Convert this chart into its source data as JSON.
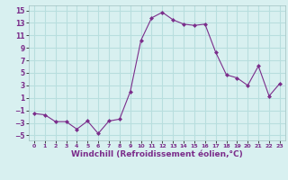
{
  "x": [
    0,
    1,
    2,
    3,
    4,
    5,
    6,
    7,
    8,
    9,
    10,
    11,
    12,
    13,
    14,
    15,
    16,
    17,
    18,
    19,
    20,
    21,
    22,
    23
  ],
  "y": [
    -1.5,
    -1.7,
    -2.8,
    -2.8,
    -4.0,
    -2.7,
    -4.7,
    -2.7,
    -2.4,
    2.0,
    10.2,
    13.8,
    14.7,
    13.5,
    12.8,
    12.6,
    12.8,
    8.3,
    4.7,
    4.2,
    3.0,
    6.1,
    1.3,
    3.3
  ],
  "line_color": "#7b2d8b",
  "marker": "D",
  "marker_size": 2.0,
  "bg_color": "#d8f0f0",
  "grid_color": "#b8dede",
  "xlabel": "Windchill (Refroidissement éolien,°C)",
  "xlabel_fontsize": 6.5,
  "xlim": [
    -0.5,
    23.5
  ],
  "ylim": [
    -5.8,
    15.8
  ],
  "yticks": [
    -5,
    -3,
    -1,
    1,
    3,
    5,
    7,
    9,
    11,
    13,
    15
  ],
  "xticks": [
    0,
    1,
    2,
    3,
    4,
    5,
    6,
    7,
    8,
    9,
    10,
    11,
    12,
    13,
    14,
    15,
    16,
    17,
    18,
    19,
    20,
    21,
    22,
    23
  ]
}
